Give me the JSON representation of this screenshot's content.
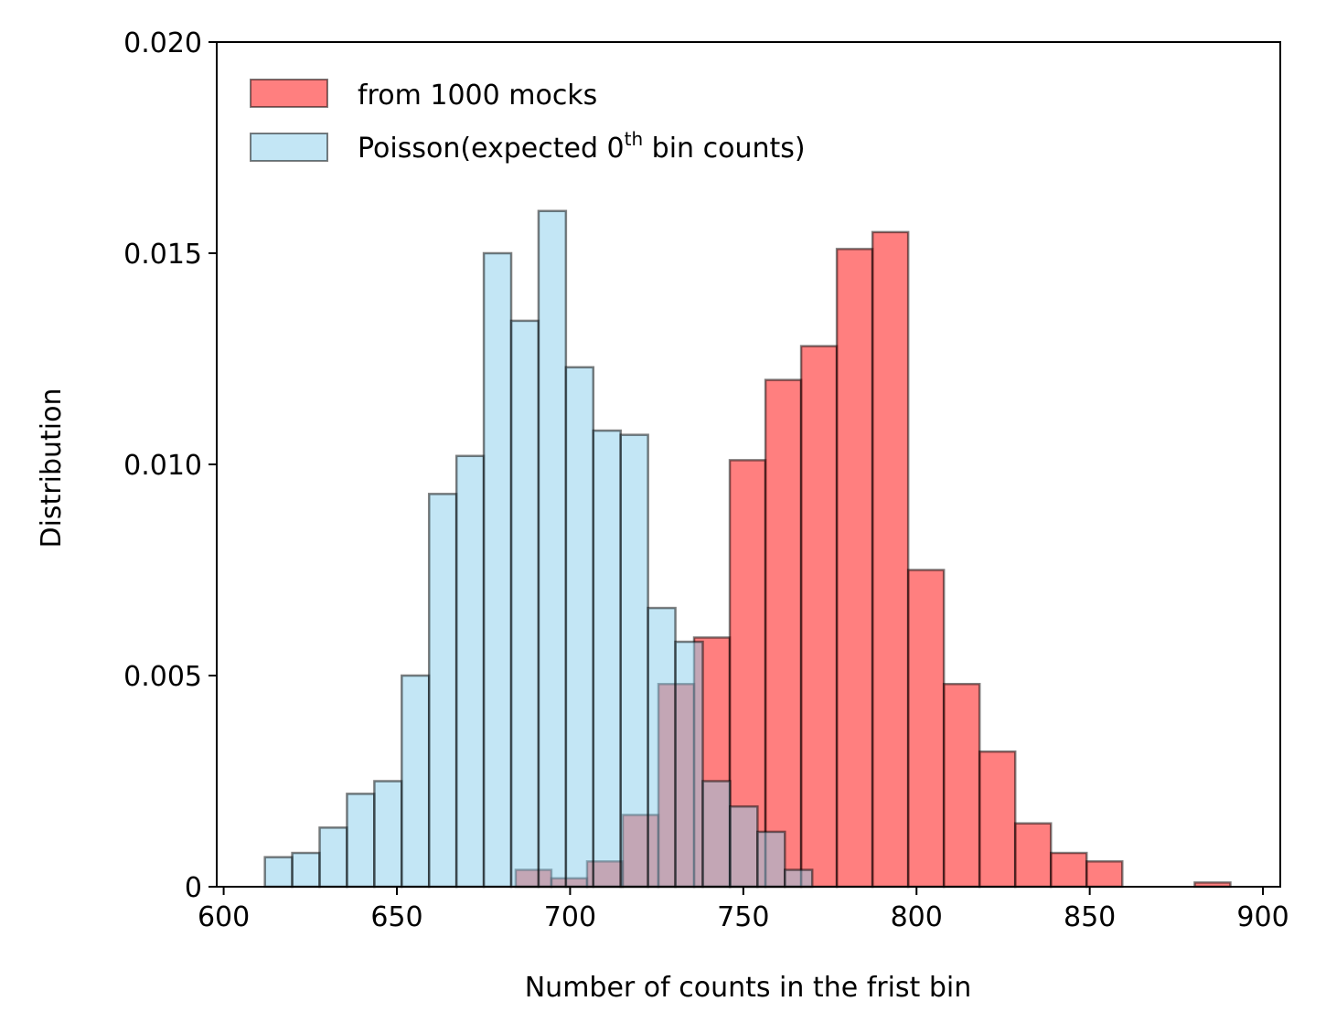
{
  "chart_data": {
    "type": "bar",
    "xlabel": "Number of counts in the frist bin",
    "ylabel": "Distribution",
    "xlim": [
      598,
      905
    ],
    "ylim": [
      0,
      0.02
    ],
    "xticks": [
      600,
      650,
      700,
      750,
      800,
      850,
      900
    ],
    "xtick_labels": [
      "600",
      "650",
      "700",
      "750",
      "800",
      "850",
      "900"
    ],
    "yticks": [
      0,
      0.005,
      0.01,
      0.015,
      0.02
    ],
    "ytick_labels": [
      "0",
      "0.005",
      "0.010",
      "0.015",
      "0.020"
    ],
    "grid": false,
    "legend_position": "top-left",
    "colors": {
      "mocks": "#ff0000",
      "poisson": "#87ceeb",
      "edge": "#000000"
    },
    "series": [
      {
        "name": "from 1000 mocks",
        "color": "#ff0000",
        "alpha": 0.5,
        "bins": [
          {
            "left": 684.3,
            "right": 694.6,
            "value": 0.0004
          },
          {
            "left": 694.6,
            "right": 704.9,
            "value": 0.0002
          },
          {
            "left": 704.9,
            "right": 715.2,
            "value": 0.0006
          },
          {
            "left": 715.2,
            "right": 725.5,
            "value": 0.0017
          },
          {
            "left": 725.5,
            "right": 735.8,
            "value": 0.0048
          },
          {
            "left": 735.8,
            "right": 746.1,
            "value": 0.0059
          },
          {
            "left": 746.1,
            "right": 756.4,
            "value": 0.0101
          },
          {
            "left": 756.4,
            "right": 766.7,
            "value": 0.012
          },
          {
            "left": 766.7,
            "right": 777.0,
            "value": 0.0128
          },
          {
            "left": 777.0,
            "right": 787.3,
            "value": 0.0151
          },
          {
            "left": 787.3,
            "right": 797.6,
            "value": 0.0155
          },
          {
            "left": 797.6,
            "right": 807.9,
            "value": 0.0075
          },
          {
            "left": 807.9,
            "right": 818.2,
            "value": 0.0048
          },
          {
            "left": 818.2,
            "right": 828.5,
            "value": 0.0032
          },
          {
            "left": 828.5,
            "right": 838.8,
            "value": 0.0015
          },
          {
            "left": 838.8,
            "right": 849.1,
            "value": 0.0008
          },
          {
            "left": 849.1,
            "right": 859.4,
            "value": 0.0006
          },
          {
            "left": 880.3,
            "right": 890.6,
            "value": 0.0001
          }
        ]
      },
      {
        "name": "Poisson(expected 0th bin counts)",
        "color": "#87ceeb",
        "alpha": 0.5,
        "bins": [
          {
            "left": 611.9,
            "right": 619.8,
            "value": 0.0007
          },
          {
            "left": 619.8,
            "right": 627.7,
            "value": 0.0008
          },
          {
            "left": 627.7,
            "right": 635.6,
            "value": 0.0014
          },
          {
            "left": 635.6,
            "right": 643.5,
            "value": 0.0022
          },
          {
            "left": 643.5,
            "right": 651.4,
            "value": 0.0025
          },
          {
            "left": 651.4,
            "right": 659.3,
            "value": 0.005
          },
          {
            "left": 659.3,
            "right": 667.2,
            "value": 0.0093
          },
          {
            "left": 667.2,
            "right": 675.1,
            "value": 0.0102
          },
          {
            "left": 675.1,
            "right": 683.0,
            "value": 0.015
          },
          {
            "left": 683.0,
            "right": 690.9,
            "value": 0.0134
          },
          {
            "left": 690.9,
            "right": 698.8,
            "value": 0.016
          },
          {
            "left": 698.8,
            "right": 706.7,
            "value": 0.0123
          },
          {
            "left": 706.7,
            "right": 714.6,
            "value": 0.0108
          },
          {
            "left": 714.6,
            "right": 722.5,
            "value": 0.0107
          },
          {
            "left": 722.5,
            "right": 730.4,
            "value": 0.0066
          },
          {
            "left": 730.4,
            "right": 738.3,
            "value": 0.0058
          },
          {
            "left": 738.3,
            "right": 746.2,
            "value": 0.0025
          },
          {
            "left": 746.2,
            "right": 754.1,
            "value": 0.0019
          },
          {
            "left": 754.1,
            "right": 762.0,
            "value": 0.0013
          },
          {
            "left": 762.0,
            "right": 769.9,
            "value": 0.0004
          }
        ]
      }
    ],
    "legend": {
      "entries": [
        {
          "label": "from 1000 mocks",
          "series": 0
        },
        {
          "label_main": "Poisson(expected 0",
          "label_sup": "th",
          "label_tail": " bin counts)",
          "series": 1
        }
      ]
    }
  }
}
